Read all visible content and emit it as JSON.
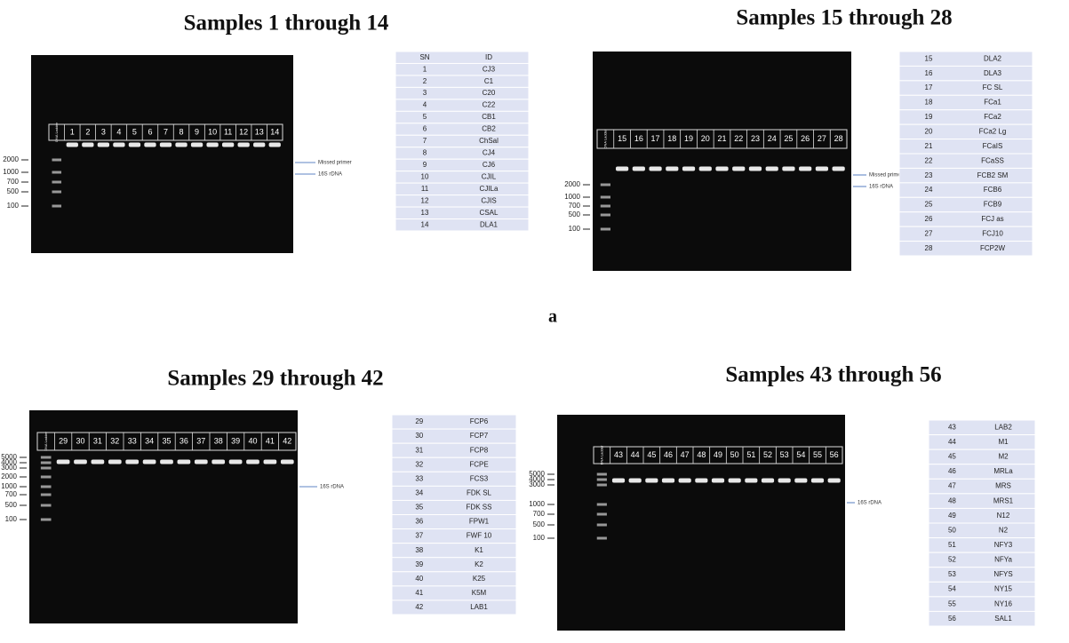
{
  "figure_label": "a",
  "panels": [
    {
      "title": "Samples 1 through 14",
      "ladder_label": "DNA Ladder",
      "lanes": [
        "1",
        "2",
        "3",
        "4",
        "5",
        "6",
        "7",
        "8",
        "9",
        "10",
        "11",
        "12",
        "13",
        "14"
      ],
      "markers": [
        "2000",
        "1000",
        "700",
        "500",
        "100"
      ],
      "annotations": [
        "Missed primer",
        "16S rDNA"
      ],
      "table": {
        "header": [
          "SN",
          "ID"
        ],
        "rows": [
          [
            "1",
            "CJ3"
          ],
          [
            "2",
            "C1"
          ],
          [
            "3",
            "C20"
          ],
          [
            "4",
            "C22"
          ],
          [
            "5",
            "CB1"
          ],
          [
            "6",
            "CB2"
          ],
          [
            "7",
            "ChSal"
          ],
          [
            "8",
            "CJ4"
          ],
          [
            "9",
            "CJ6"
          ],
          [
            "10",
            "CJIL"
          ],
          [
            "11",
            "CJILa"
          ],
          [
            "12",
            "CJIS"
          ],
          [
            "13",
            "CSAL"
          ],
          [
            "14",
            "DLA1"
          ]
        ]
      }
    },
    {
      "title": "Samples 15 through 28",
      "ladder_label": "DNA Ladder",
      "lanes": [
        "15",
        "16",
        "17",
        "18",
        "19",
        "20",
        "21",
        "22",
        "23",
        "24",
        "25",
        "26",
        "27",
        "28"
      ],
      "markers": [
        "2000",
        "1000",
        "700",
        "500",
        "100"
      ],
      "annotations": [
        "Missed primer",
        "16S rDNA"
      ],
      "table": {
        "rows": [
          [
            "15",
            "DLA2"
          ],
          [
            "16",
            "DLA3"
          ],
          [
            "17",
            "FC SL"
          ],
          [
            "18",
            "FCa1"
          ],
          [
            "19",
            "FCa2"
          ],
          [
            "20",
            "FCa2 Lg"
          ],
          [
            "21",
            "FCaIS"
          ],
          [
            "22",
            "FCaSS"
          ],
          [
            "23",
            "FCB2 SM"
          ],
          [
            "24",
            "FCB6"
          ],
          [
            "25",
            "FCB9"
          ],
          [
            "26",
            "FCJ as"
          ],
          [
            "27",
            "FCJ10"
          ],
          [
            "28",
            "FCP2W"
          ]
        ]
      }
    },
    {
      "title": "Samples 29 through 42",
      "ladder_label": "DNA Ladder",
      "lanes": [
        "29",
        "30",
        "31",
        "32",
        "33",
        "34",
        "35",
        "36",
        "37",
        "38",
        "39",
        "40",
        "41",
        "42"
      ],
      "markers": [
        "5000",
        "4000",
        "3000",
        "2000",
        "1000",
        "700",
        "500",
        "100"
      ],
      "annotations": [
        "16S rDNA"
      ],
      "table": {
        "rows": [
          [
            "29",
            "FCP6"
          ],
          [
            "30",
            "FCP7"
          ],
          [
            "31",
            "FCP8"
          ],
          [
            "32",
            "FCPE"
          ],
          [
            "33",
            "FCS3"
          ],
          [
            "34",
            "FDK SL"
          ],
          [
            "35",
            "FDK SS"
          ],
          [
            "36",
            "FPW1"
          ],
          [
            "37",
            "FWF 10"
          ],
          [
            "38",
            "K1"
          ],
          [
            "39",
            "K2"
          ],
          [
            "40",
            "K25"
          ],
          [
            "41",
            "K5M"
          ],
          [
            "42",
            "LAB1"
          ]
        ]
      }
    },
    {
      "title": "Samples 43 through 56",
      "ladder_label": "DNA Ladder",
      "lanes": [
        "43",
        "44",
        "45",
        "46",
        "47",
        "48",
        "49",
        "50",
        "51",
        "52",
        "53",
        "54",
        "55",
        "56"
      ],
      "markers": [
        "5000",
        "4000",
        "3000",
        "1000",
        "700",
        "500",
        "100"
      ],
      "annotations": [
        "16S rDNA"
      ],
      "table": {
        "rows": [
          [
            "43",
            "LAB2"
          ],
          [
            "44",
            "M1"
          ],
          [
            "45",
            "M2"
          ],
          [
            "46",
            "MRLa"
          ],
          [
            "47",
            "MRS"
          ],
          [
            "48",
            "MRS1"
          ],
          [
            "49",
            "N12"
          ],
          [
            "50",
            "N2"
          ],
          [
            "51",
            "NFY3"
          ],
          [
            "52",
            "NFYa"
          ],
          [
            "53",
            "NFYS"
          ],
          [
            "54",
            "NY15"
          ],
          [
            "55",
            "NY16"
          ],
          [
            "56",
            "SAL1"
          ]
        ]
      }
    }
  ]
}
